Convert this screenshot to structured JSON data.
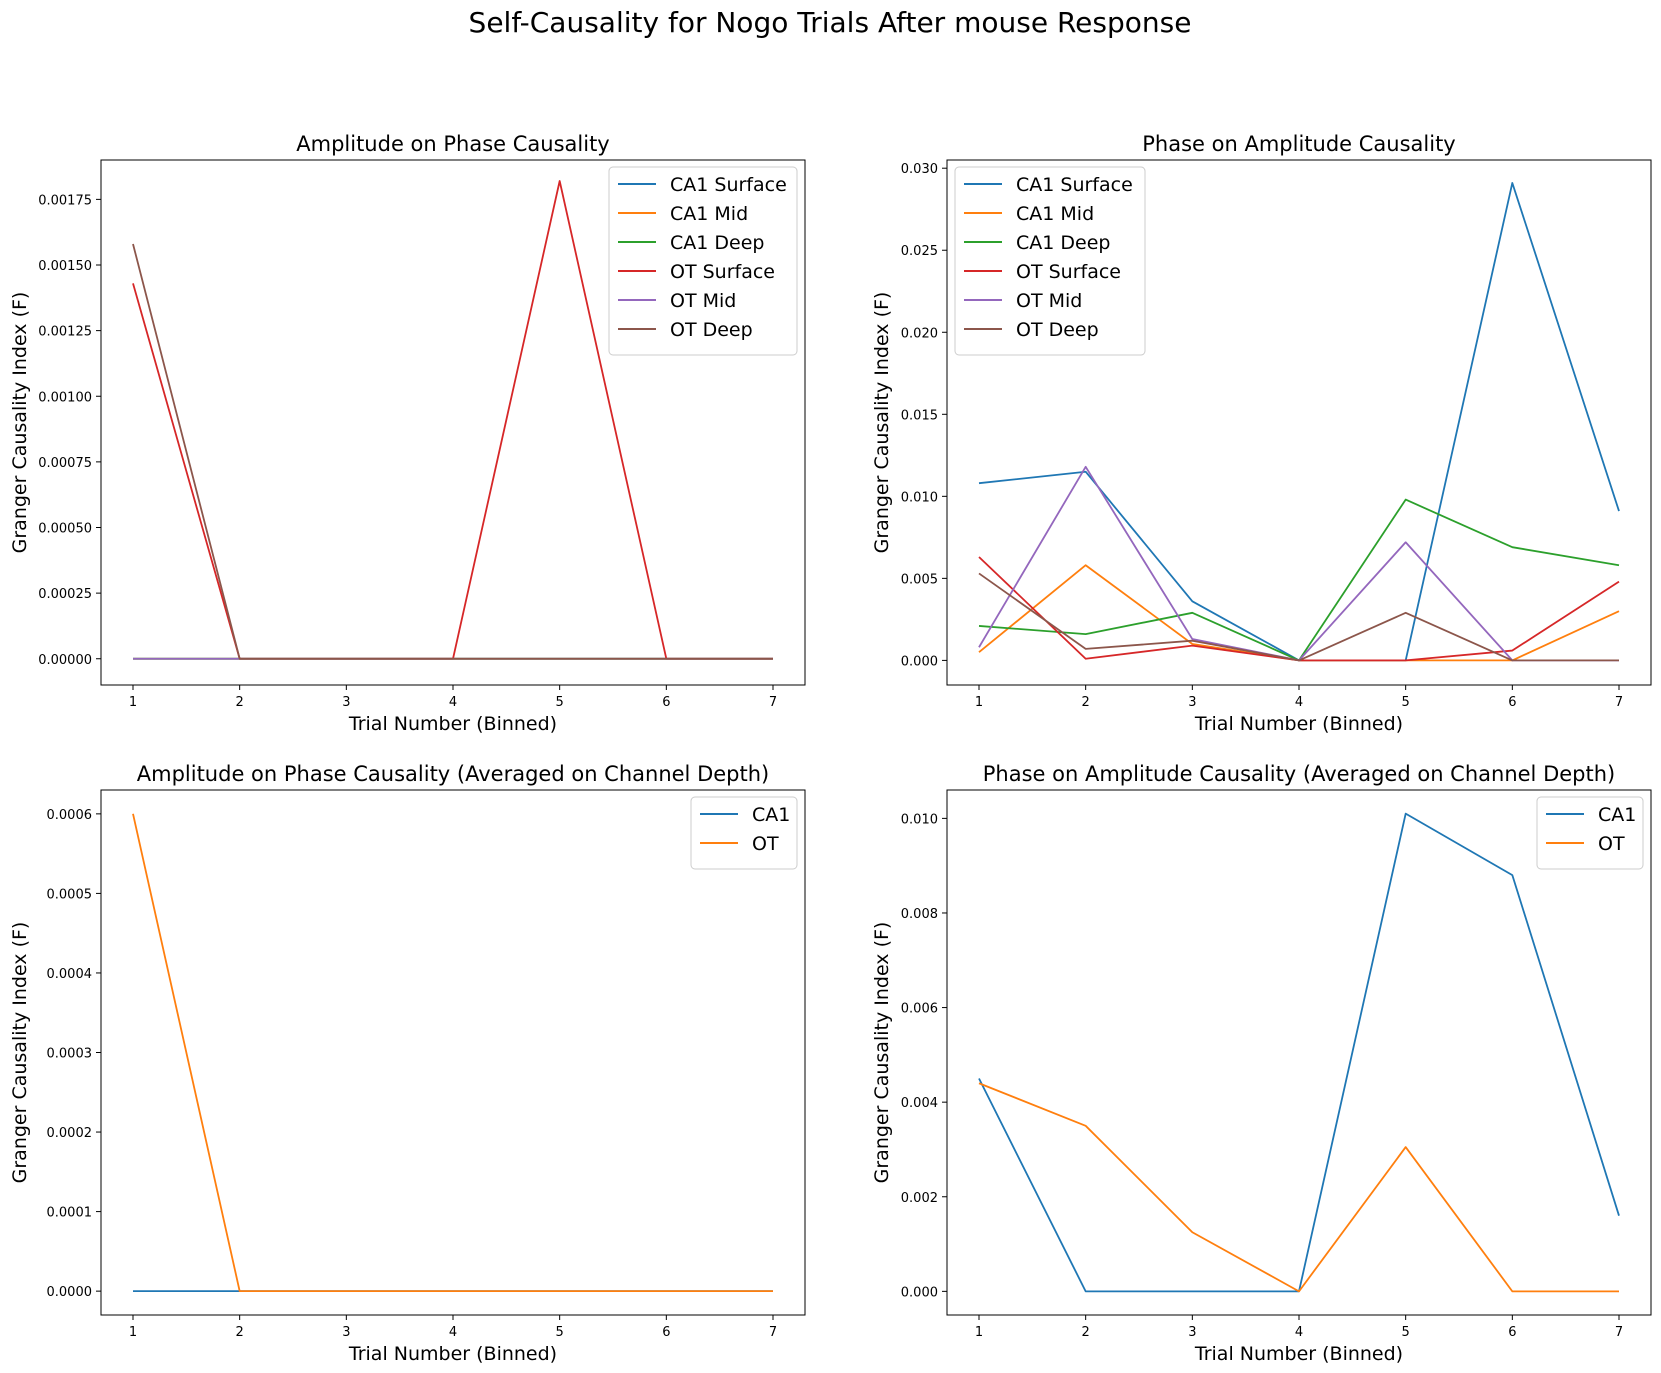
{
  "figure_title": "Self-Causality for Nogo Trials After mouse Response",
  "chart_data": [
    {
      "type": "line",
      "title": "Amplitude on Phase Causality",
      "xlabel": "Trial Number (Binned)",
      "ylabel": "Granger Causality Index (F)",
      "x": [
        1,
        2,
        3,
        4,
        5,
        6,
        7
      ],
      "xlim": [
        0.7,
        7.3
      ],
      "ylim": [
        -0.0001,
        0.0019
      ],
      "yticks": [
        0,
        0.00025,
        0.0005,
        0.00075,
        0.001,
        0.00125,
        0.0015,
        0.00175
      ],
      "ytick_labels": [
        "0.00000",
        "0.00025",
        "0.00050",
        "0.00075",
        "0.00100",
        "0.00125",
        "0.00150",
        "0.00175"
      ],
      "legend": "top-right",
      "grid": false,
      "series": [
        {
          "name": "CA1 Surface",
          "color": "#1f77b4",
          "values": [
            0,
            0,
            0,
            0,
            0,
            0,
            0
          ]
        },
        {
          "name": "CA1 Mid",
          "color": "#ff7f0e",
          "values": [
            0,
            0,
            0,
            0,
            0,
            0,
            0
          ]
        },
        {
          "name": "CA1 Deep",
          "color": "#2ca02c",
          "values": [
            0,
            0,
            0,
            0,
            0,
            0,
            0
          ]
        },
        {
          "name": "OT Surface",
          "color": "#d62728",
          "values": [
            0.00143,
            0,
            0,
            0,
            0.00182,
            0,
            0
          ]
        },
        {
          "name": "OT Mid",
          "color": "#9467bd",
          "values": [
            0,
            0,
            0,
            0,
            0,
            0,
            0
          ]
        },
        {
          "name": "OT Deep",
          "color": "#8c564b",
          "values": [
            0.00158,
            0,
            0,
            0,
            0,
            0,
            0
          ]
        }
      ]
    },
    {
      "type": "line",
      "title": "Phase on Amplitude Causality",
      "xlabel": "Trial Number (Binned)",
      "ylabel": "Granger Causality Index (F)",
      "x": [
        1,
        2,
        3,
        4,
        5,
        6,
        7
      ],
      "xlim": [
        0.7,
        7.3
      ],
      "ylim": [
        -0.0015,
        0.0305
      ],
      "yticks": [
        0,
        0.005,
        0.01,
        0.015,
        0.02,
        0.025,
        0.03
      ],
      "ytick_labels": [
        "0.000",
        "0.005",
        "0.010",
        "0.015",
        "0.020",
        "0.025",
        "0.030"
      ],
      "legend": "top-left",
      "grid": false,
      "series": [
        {
          "name": "CA1 Surface",
          "color": "#1f77b4",
          "values": [
            0.0108,
            0.0115,
            0.0036,
            0,
            0,
            0.0291,
            0.0091
          ]
        },
        {
          "name": "CA1 Mid",
          "color": "#ff7f0e",
          "values": [
            0.0005,
            0.0058,
            0.001,
            0,
            0,
            0,
            0.003
          ]
        },
        {
          "name": "CA1 Deep",
          "color": "#2ca02c",
          "values": [
            0.0021,
            0.0016,
            0.0029,
            0,
            0.0098,
            0.0069,
            0.0058
          ]
        },
        {
          "name": "OT Surface",
          "color": "#d62728",
          "values": [
            0.0063,
            0.0001,
            0.0009,
            0,
            0,
            0.0006,
            0.0048
          ]
        },
        {
          "name": "OT Mid",
          "color": "#9467bd",
          "values": [
            0.0008,
            0.0118,
            0.0013,
            0,
            0.0072,
            0,
            0
          ]
        },
        {
          "name": "OT Deep",
          "color": "#8c564b",
          "values": [
            0.0053,
            0.0007,
            0.0012,
            0,
            0.0029,
            0,
            0
          ]
        }
      ]
    },
    {
      "type": "line",
      "title": "Amplitude on Phase Causality (Averaged on Channel Depth)",
      "xlabel": "Trial Number (Binned)",
      "ylabel": "Granger Causality Index (F)",
      "x": [
        1,
        2,
        3,
        4,
        5,
        6,
        7
      ],
      "xlim": [
        0.7,
        7.3
      ],
      "ylim": [
        -3e-05,
        0.00063
      ],
      "yticks": [
        0,
        0.0001,
        0.0002,
        0.0003,
        0.0004,
        0.0005,
        0.0006
      ],
      "ytick_labels": [
        "0.0000",
        "0.0001",
        "0.0002",
        "0.0003",
        "0.0004",
        "0.0005",
        "0.0006"
      ],
      "legend": "top-right",
      "grid": false,
      "series": [
        {
          "name": "CA1",
          "color": "#1f77b4",
          "values": [
            0,
            0,
            0,
            0,
            0,
            0,
            0
          ]
        },
        {
          "name": "OT",
          "color": "#ff7f0e",
          "values": [
            0.0006,
            0,
            0,
            0,
            0,
            0,
            0
          ]
        }
      ]
    },
    {
      "type": "line",
      "title": "Phase on Amplitude Causality (Averaged on Channel Depth)",
      "xlabel": "Trial Number (Binned)",
      "ylabel": "Granger Causality Index (F)",
      "x": [
        1,
        2,
        3,
        4,
        5,
        6,
        7
      ],
      "xlim": [
        0.7,
        7.3
      ],
      "ylim": [
        -0.0005,
        0.0106
      ],
      "yticks": [
        0,
        0.002,
        0.004,
        0.006,
        0.008,
        0.01
      ],
      "ytick_labels": [
        "0.000",
        "0.002",
        "0.004",
        "0.006",
        "0.008",
        "0.010"
      ],
      "legend": "top-right",
      "grid": false,
      "series": [
        {
          "name": "CA1",
          "color": "#1f77b4",
          "values": [
            0.0045,
            0,
            0,
            0,
            0.0101,
            0.0088,
            0.0016
          ]
        },
        {
          "name": "OT",
          "color": "#ff7f0e",
          "values": [
            0.0044,
            0.0035,
            0.00125,
            0,
            0.00305,
            0,
            0
          ]
        }
      ]
    }
  ]
}
